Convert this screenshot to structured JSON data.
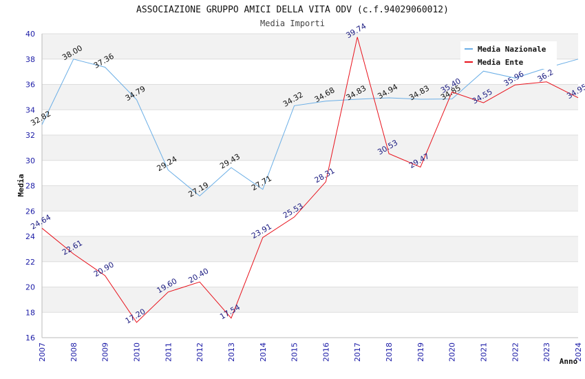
{
  "chart_data": {
    "type": "line",
    "title": "ASSOCIAZIONE GRUPPO AMICI DELLA VITA ODV (c.f.94029060012)",
    "subtitle": "Media Importi",
    "xlabel": "Anno",
    "ylabel": "Media",
    "ylim": [
      16,
      40
    ],
    "yticks": [
      16,
      18,
      20,
      22,
      24,
      26,
      28,
      30,
      32,
      34,
      36,
      38,
      40
    ],
    "x": [
      "2007",
      "2008",
      "2009",
      "2010",
      "2011",
      "2012",
      "2013",
      "2014",
      "2015",
      "2016",
      "2017",
      "2018",
      "2019",
      "2020",
      "2021",
      "2022",
      "2023",
      "2024"
    ],
    "grid": "horizontal bands",
    "legend_position": "top-right",
    "series": [
      {
        "name": "Media Nazionale",
        "color": "#6aaee6",
        "values": [
          32.82,
          38.0,
          37.36,
          34.79,
          29.24,
          27.19,
          29.43,
          27.71,
          34.32,
          34.68,
          34.83,
          34.94,
          34.83,
          34.85,
          37.05,
          36.5,
          37.3,
          38.0
        ],
        "labels": [
          "32.82",
          "38.00",
          "37.36",
          "34.79",
          "29.24",
          "27.19",
          "29.43",
          "27.71",
          "34.32",
          "34.68",
          "34.83",
          "34.94",
          "34.83",
          "34.85",
          "",
          "",
          "",
          ""
        ]
      },
      {
        "name": "Media Ente",
        "color": "#e8101a",
        "values": [
          24.64,
          22.61,
          20.9,
          17.2,
          19.6,
          20.4,
          17.54,
          23.91,
          25.53,
          28.31,
          39.74,
          30.53,
          29.47,
          35.4,
          34.55,
          35.96,
          36.2,
          34.95
        ],
        "labels": [
          "24.64",
          "22.61",
          "20.90",
          "17.20",
          "19.60",
          "20.40",
          "17.54",
          "23.91",
          "25.53",
          "28.31",
          "39.74",
          "30.53",
          "29.47",
          "35.40",
          "34.55",
          "35.96",
          "36.2",
          "34.95"
        ]
      }
    ]
  }
}
